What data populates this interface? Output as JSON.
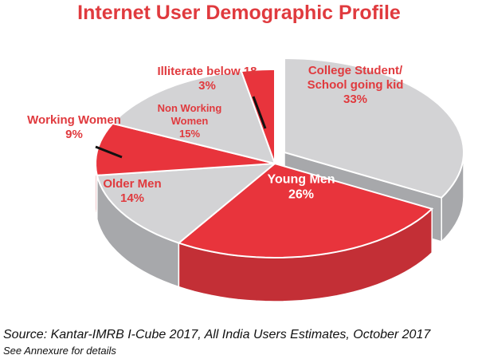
{
  "title": "Internet User Demographic Profile",
  "source": "Source: Kantar-IMRB I-Cube 2017, All India Users Estimates, October 2017",
  "note": "See Annexure for details",
  "colors": {
    "title": "#e03a3e",
    "red_top": "#e8343c",
    "red_side": "#c32f36",
    "grey_top": "#d3d3d5",
    "grey_side": "#a7a8ab",
    "edge": "#ffffff"
  },
  "chart_data": {
    "type": "pie",
    "title": "Internet User Demographic Profile",
    "slices": [
      {
        "label_lines": [
          "College Student/",
          "School going kid"
        ],
        "value_label": "33%",
        "value": 33,
        "color": "grey"
      },
      {
        "label_lines": [
          "Young Men"
        ],
        "value_label": "26%",
        "value": 26,
        "color": "red"
      },
      {
        "label_lines": [
          "Older Men"
        ],
        "value_label": "14%",
        "value": 14,
        "color": "grey"
      },
      {
        "label_lines": [
          "Working Women"
        ],
        "value_label": "9%",
        "value": 9,
        "color": "red"
      },
      {
        "label_lines": [
          "Non Working",
          "Women"
        ],
        "value_label": "15%",
        "value": 15,
        "color": "grey"
      },
      {
        "label_lines": [
          "Illiterate below 18"
        ],
        "value_label": "3%",
        "value": 3,
        "color": "red"
      }
    ]
  }
}
